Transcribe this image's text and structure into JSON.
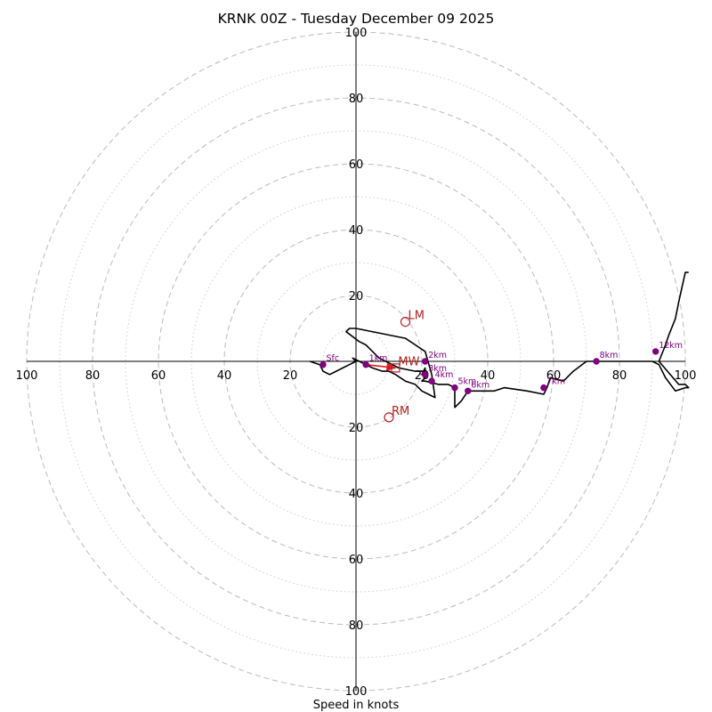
{
  "chart_data": {
    "type": "hodograph",
    "title": "KRNK 00Z - Tuesday December 09 2025",
    "xlabel": "Speed in knots",
    "range": [
      -100,
      100
    ],
    "tick_values": [
      20,
      40,
      60,
      80,
      100
    ],
    "major_rings": [
      20,
      40,
      60,
      80,
      100
    ],
    "minor_rings": [
      10,
      30,
      50,
      70,
      90
    ],
    "colors": {
      "trace": "#000000",
      "heights": "#800080",
      "motion": "#b22222",
      "arrow": "#e31a1c",
      "grid": "#bbbbbb",
      "axis": "#000000"
    },
    "trace": [
      [
        -14,
        0
      ],
      [
        -11,
        -1
      ],
      [
        -10,
        -3
      ],
      [
        -8,
        -4
      ],
      [
        -6,
        -3
      ],
      [
        -4,
        -2
      ],
      [
        -2,
        -1
      ],
      [
        0,
        0
      ],
      [
        -1,
        1
      ],
      [
        1,
        0
      ],
      [
        3,
        -1
      ],
      [
        5,
        -2
      ],
      [
        8,
        -3
      ],
      [
        10,
        -3
      ],
      [
        12,
        -4
      ],
      [
        15,
        -6
      ],
      [
        18,
        -7
      ],
      [
        20,
        -9
      ],
      [
        22,
        -10
      ],
      [
        24,
        -11
      ],
      [
        23,
        -4
      ],
      [
        21,
        3
      ],
      [
        18,
        5
      ],
      [
        15,
        7
      ],
      [
        0,
        10
      ],
      [
        -2,
        10
      ],
      [
        -3,
        9
      ],
      [
        1,
        6
      ],
      [
        3,
        5
      ],
      [
        4,
        4
      ],
      [
        7,
        1
      ],
      [
        13,
        -2
      ],
      [
        18,
        -3
      ],
      [
        21,
        -3
      ],
      [
        21,
        -2
      ],
      [
        20,
        -4
      ],
      [
        21,
        -5
      ],
      [
        20,
        -6
      ],
      [
        21,
        -6
      ],
      [
        25,
        -7
      ],
      [
        27,
        -7
      ],
      [
        28,
        -7
      ],
      [
        30,
        -8
      ],
      [
        30,
        -14
      ],
      [
        32,
        -12
      ],
      [
        34,
        -9
      ],
      [
        38,
        -9
      ],
      [
        42,
        -9
      ],
      [
        45,
        -8
      ],
      [
        52,
        -9
      ],
      [
        57,
        -10
      ],
      [
        58,
        -8
      ],
      [
        59,
        -5
      ],
      [
        63,
        -6
      ],
      [
        66,
        -3
      ],
      [
        70,
        0
      ],
      [
        73,
        0
      ],
      [
        78,
        0
      ],
      [
        85,
        0
      ],
      [
        90,
        0
      ],
      [
        92,
        -1
      ],
      [
        94,
        -5
      ],
      [
        97,
        -9
      ],
      [
        100,
        -8
      ],
      [
        101,
        -8
      ],
      [
        100,
        -7
      ],
      [
        98,
        -7
      ],
      [
        92,
        0
      ],
      [
        94,
        5
      ],
      [
        95,
        8
      ],
      [
        97,
        13
      ],
      [
        98,
        18
      ],
      [
        100,
        27
      ],
      [
        101,
        27
      ]
    ],
    "height_markers": [
      {
        "label": "Sfc",
        "x": -10,
        "y": -1
      },
      {
        "label": "1km",
        "x": 3,
        "y": -1
      },
      {
        "label": "2km",
        "x": 21,
        "y": 0
      },
      {
        "label": "3km",
        "x": 21,
        "y": -4
      },
      {
        "label": "4km",
        "x": 23,
        "y": -6
      },
      {
        "label": "5km",
        "x": 30,
        "y": -8
      },
      {
        "label": "6km",
        "x": 34,
        "y": -9
      },
      {
        "label": "7km",
        "x": 57,
        "y": -8
      },
      {
        "label": "8km",
        "x": 73,
        "y": 0
      },
      {
        "label": "12km",
        "x": 91,
        "y": 3
      }
    ],
    "storm_motion": [
      {
        "label": "LM",
        "x": 15,
        "y": 12,
        "marker": "circle"
      },
      {
        "label": "RM",
        "x": 10,
        "y": -17,
        "marker": "circle"
      },
      {
        "label": "MW",
        "x": 12,
        "y": -2,
        "marker": "square"
      }
    ],
    "shear_arrow": {
      "from": [
        3,
        -1
      ],
      "to": [
        12,
        -2
      ]
    }
  }
}
